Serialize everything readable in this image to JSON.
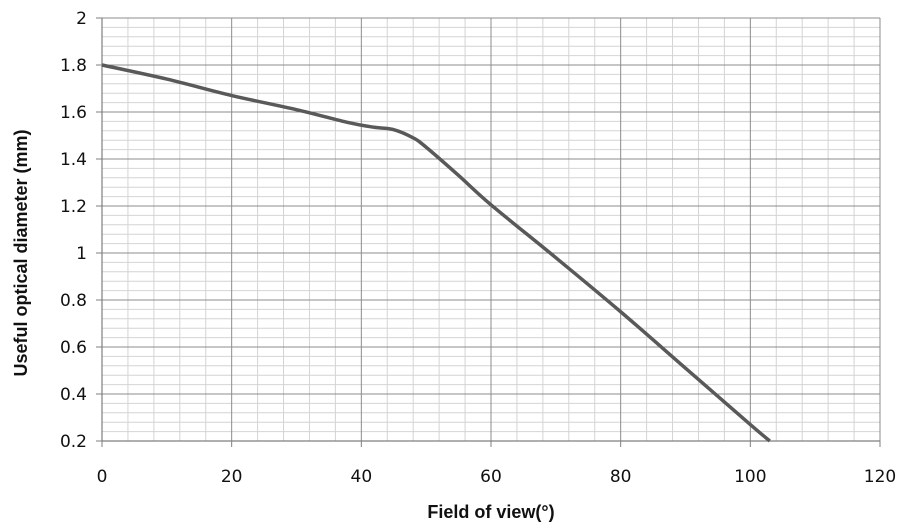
{
  "chart_data": {
    "type": "line",
    "title": "",
    "xlabel": "Field of view(°)",
    "ylabel": "Useful optical diameter (mm)",
    "xlim": [
      0,
      120
    ],
    "ylim": [
      0.2,
      2
    ],
    "xticks": [
      0,
      20,
      40,
      60,
      80,
      100,
      120
    ],
    "yticks": [
      0.2,
      0.4,
      0.6,
      0.8,
      1,
      1.2,
      1.4,
      1.6,
      1.8,
      2
    ],
    "xtick_labels": [
      "0",
      "20",
      "40",
      "60",
      "80",
      "100",
      "120"
    ],
    "ytick_labels": [
      "0.2",
      "0.4",
      "0.6",
      "0.8",
      "1",
      "1.2",
      "1.4",
      "1.6",
      "1.8",
      "2"
    ],
    "grid": true,
    "minor_grid": true,
    "legend": "none",
    "line_color": "#595959",
    "series": [
      {
        "x": [
          0,
          10,
          20,
          30,
          38,
          42,
          45,
          48,
          50,
          55,
          60,
          70,
          80,
          90,
          100,
          103
        ],
        "y": [
          1.8,
          1.74,
          1.67,
          1.61,
          1.555,
          1.535,
          1.525,
          1.49,
          1.45,
          1.33,
          1.205,
          0.98,
          0.75,
          0.51,
          0.27,
          0.2
        ]
      }
    ]
  }
}
